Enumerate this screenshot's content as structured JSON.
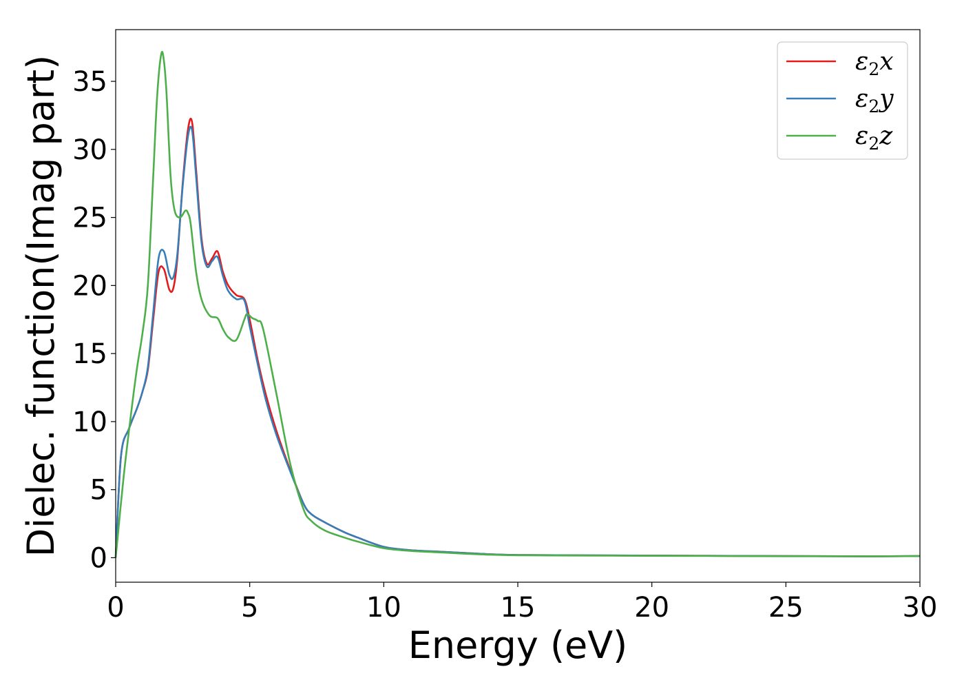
{
  "chart_data": {
    "type": "line",
    "title": "",
    "xlabel": "Energy (eV)",
    "ylabel": "Dielec. function(Imag part)",
    "xlim": [
      0,
      30
    ],
    "ylim": [
      -1.8,
      38.8
    ],
    "xticks": [
      0,
      5,
      10,
      15,
      20,
      25,
      30
    ],
    "yticks": [
      0,
      5,
      10,
      15,
      20,
      25,
      30,
      35
    ],
    "grid": false,
    "legend_position": "top-right",
    "series": [
      {
        "name": "ε2x",
        "legend_base": "ε",
        "legend_sub": "2",
        "legend_suffix": "x",
        "color": "#e41a1c",
        "x": [
          0,
          0.2,
          0.5,
          0.8,
          1.0,
          1.2,
          1.4,
          1.6,
          1.8,
          2.0,
          2.15,
          2.3,
          2.5,
          2.7,
          2.85,
          3.0,
          3.2,
          3.4,
          3.6,
          3.8,
          4.0,
          4.2,
          4.5,
          4.8,
          5.0,
          5.3,
          5.6,
          6.0,
          6.5,
          7.0,
          7.3,
          7.8,
          8.5,
          9.0,
          10.0,
          11.0,
          12.0,
          13.0,
          14.0,
          15.0,
          17.0,
          20.0,
          22.0,
          25.0,
          28.0,
          30.0
        ],
        "y": [
          0,
          7.5,
          9.5,
          11.0,
          12.2,
          13.8,
          17.5,
          21.0,
          21.2,
          19.7,
          19.8,
          22.0,
          27.5,
          31.5,
          32.0,
          28.5,
          23.5,
          21.6,
          22.0,
          22.5,
          21.0,
          20.0,
          19.3,
          19.0,
          17.5,
          14.5,
          12.0,
          9.3,
          6.5,
          4.0,
          3.2,
          2.6,
          1.9,
          1.5,
          0.8,
          0.55,
          0.45,
          0.35,
          0.25,
          0.2,
          0.18,
          0.15,
          0.14,
          0.12,
          0.1,
          0.12
        ]
      },
      {
        "name": "ε2y",
        "legend_base": "ε",
        "legend_sub": "2",
        "legend_suffix": "y",
        "color": "#377eb8",
        "x": [
          0,
          0.2,
          0.5,
          0.8,
          1.0,
          1.2,
          1.4,
          1.6,
          1.8,
          2.0,
          2.15,
          2.3,
          2.5,
          2.7,
          2.85,
          3.0,
          3.2,
          3.4,
          3.6,
          3.8,
          4.0,
          4.2,
          4.5,
          4.8,
          5.0,
          5.3,
          5.6,
          6.0,
          6.5,
          7.0,
          7.3,
          7.8,
          8.5,
          9.0,
          10.0,
          11.0,
          12.0,
          13.0,
          14.0,
          15.0,
          17.0,
          20.0,
          22.0,
          25.0,
          28.0,
          30.0
        ],
        "y": [
          0,
          7.5,
          9.5,
          11.0,
          12.2,
          14.0,
          18.0,
          22.0,
          22.5,
          20.8,
          20.6,
          22.3,
          27.3,
          31.0,
          31.4,
          28.0,
          23.2,
          21.4,
          21.8,
          22.1,
          20.7,
          19.6,
          19.0,
          18.9,
          17.0,
          14.2,
          11.6,
          9.0,
          6.4,
          4.0,
          3.2,
          2.6,
          1.9,
          1.5,
          0.8,
          0.55,
          0.45,
          0.35,
          0.25,
          0.2,
          0.18,
          0.15,
          0.14,
          0.12,
          0.1,
          0.12
        ]
      },
      {
        "name": "ε2z",
        "legend_base": "ε",
        "legend_sub": "2",
        "legend_suffix": "z",
        "color": "#4daf4a",
        "x": [
          0,
          0.3,
          0.6,
          0.8,
          1.0,
          1.2,
          1.4,
          1.55,
          1.7,
          1.8,
          1.9,
          2.05,
          2.2,
          2.4,
          2.6,
          2.7,
          2.8,
          3.0,
          3.2,
          3.5,
          3.8,
          4.0,
          4.2,
          4.5,
          4.8,
          4.9,
          5.1,
          5.3,
          5.5,
          6.0,
          6.5,
          7.0,
          7.3,
          7.8,
          8.5,
          9.0,
          10.0,
          11.0,
          12.0,
          13.0,
          14.0,
          15.0,
          17.0,
          20.0,
          22.0,
          25.0,
          28.0,
          30.0
        ],
        "y": [
          0,
          6.0,
          11.0,
          14.0,
          16.5,
          20.0,
          28.0,
          34.0,
          37.0,
          36.5,
          34.0,
          28.0,
          25.5,
          25.0,
          25.5,
          25.3,
          24.5,
          21.0,
          19.0,
          17.8,
          17.6,
          16.8,
          16.2,
          16.0,
          17.5,
          17.9,
          17.6,
          17.4,
          16.8,
          12.0,
          7.0,
          3.6,
          2.7,
          2.0,
          1.5,
          1.2,
          0.7,
          0.5,
          0.4,
          0.3,
          0.22,
          0.18,
          0.16,
          0.14,
          0.13,
          0.11,
          0.1,
          0.12
        ]
      }
    ]
  }
}
